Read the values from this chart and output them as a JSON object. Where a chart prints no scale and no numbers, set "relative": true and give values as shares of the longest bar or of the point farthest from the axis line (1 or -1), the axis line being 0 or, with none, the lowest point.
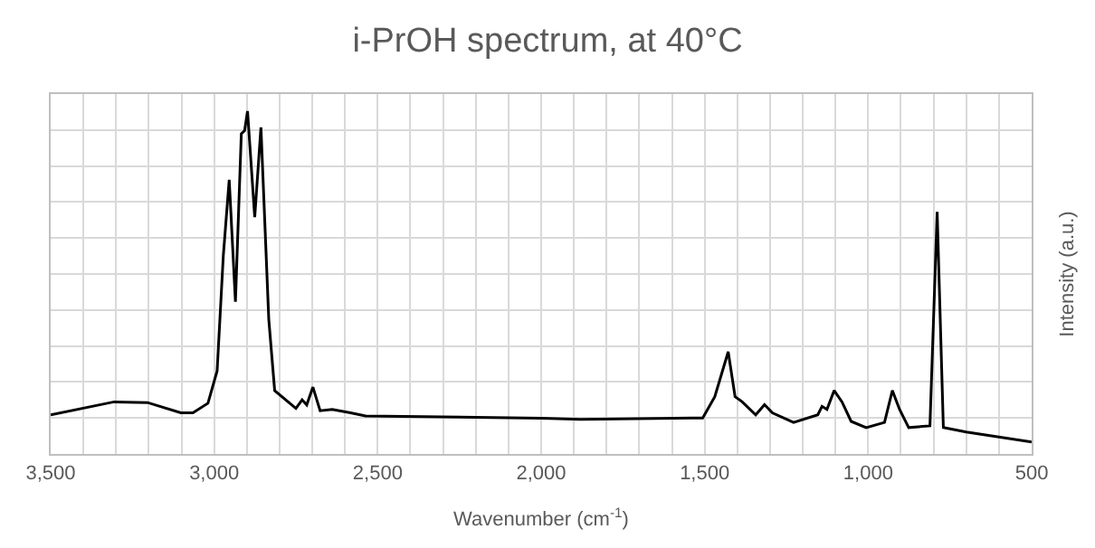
{
  "chart_data": {
    "type": "line",
    "title": "i-PrOH spectrum, at 40°C",
    "xlabel": "Wavenumber (cm$^{-1}$)",
    "ylabel": "Intensity (a.u.)",
    "relative": true,
    "x": [
      3500,
      3306,
      3204,
      3102,
      3065,
      3019,
      2991,
      2972,
      2954,
      2935,
      2917,
      2907,
      2898,
      2876,
      2857,
      2833,
      2815,
      2750,
      2731,
      2717,
      2698,
      2676,
      2639,
      2583,
      2537,
      1996,
      1880,
      1506,
      1469,
      1428,
      1407,
      1385,
      1344,
      1317,
      1293,
      1228,
      1154,
      1141,
      1126,
      1104,
      1080,
      1052,
      1006,
      950,
      926,
      904,
      876,
      811,
      789,
      770,
      700,
      500
    ],
    "series": [
      {
        "color": "#000000",
        "values": [
          0.114,
          0.152,
          0.15,
          0.12,
          0.12,
          0.148,
          0.242,
          0.579,
          0.8,
          0.444,
          0.934,
          0.943,
          1.0,
          0.691,
          0.953,
          0.393,
          0.185,
          0.133,
          0.158,
          0.143,
          0.195,
          0.126,
          0.13,
          0.12,
          0.111,
          0.104,
          0.101,
          0.105,
          0.167,
          0.298,
          0.167,
          0.152,
          0.114,
          0.144,
          0.12,
          0.092,
          0.114,
          0.139,
          0.13,
          0.185,
          0.152,
          0.095,
          0.077,
          0.092,
          0.185,
          0.13,
          0.077,
          0.082,
          0.706,
          0.077,
          0.064,
          0.035
        ]
      }
    ],
    "xlim": [
      3500,
      500
    ],
    "xticks": [
      {
        "value": 3500,
        "label": "3,500"
      },
      {
        "value": 3400,
        "label": null
      },
      {
        "value": 3300,
        "label": null
      },
      {
        "value": 3200,
        "label": null
      },
      {
        "value": 3100,
        "label": null
      },
      {
        "value": 3000,
        "label": "3,000"
      },
      {
        "value": 2900,
        "label": null
      },
      {
        "value": 2800,
        "label": null
      },
      {
        "value": 2700,
        "label": null
      },
      {
        "value": 2600,
        "label": null
      },
      {
        "value": 2500,
        "label": "2,500"
      },
      {
        "value": 2400,
        "label": null
      },
      {
        "value": 2300,
        "label": null
      },
      {
        "value": 2200,
        "label": null
      },
      {
        "value": 2100,
        "label": null
      },
      {
        "value": 2000,
        "label": "2,000"
      },
      {
        "value": 1900,
        "label": null
      },
      {
        "value": 1800,
        "label": null
      },
      {
        "value": 1700,
        "label": null
      },
      {
        "value": 1600,
        "label": null
      },
      {
        "value": 1500,
        "label": "1,500"
      },
      {
        "value": 1400,
        "label": null
      },
      {
        "value": 1300,
        "label": null
      },
      {
        "value": 1200,
        "label": null
      },
      {
        "value": 1100,
        "label": null
      },
      {
        "value": 1000,
        "label": "1,000"
      },
      {
        "value": 900,
        "label": null
      },
      {
        "value": 800,
        "label": null
      },
      {
        "value": 700,
        "label": null
      },
      {
        "value": 600,
        "label": null
      },
      {
        "value": 500,
        "label": "500"
      }
    ],
    "grid": true,
    "marker": "none",
    "line_style": "solid",
    "tick_labels": "x"
  }
}
